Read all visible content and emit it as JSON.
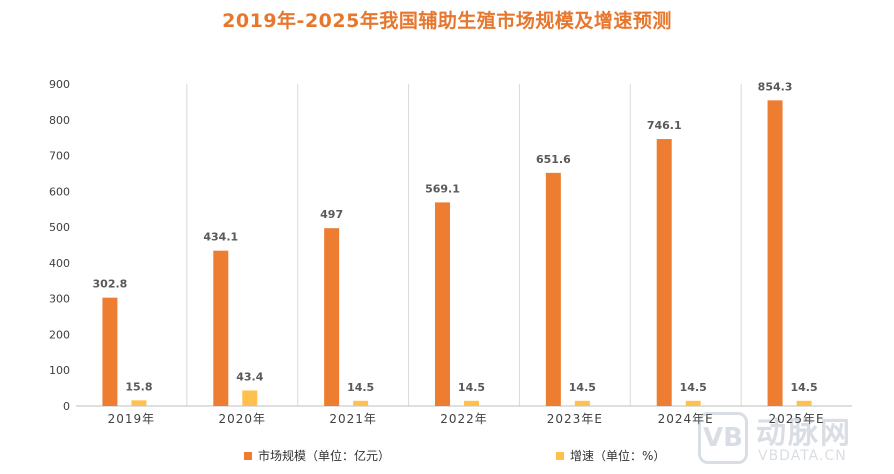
{
  "chart_data": {
    "type": "bar",
    "title": "2019年-2025年我国辅助生殖市场规模及增速预测",
    "categories": [
      "2019年",
      "2020年",
      "2021年",
      "2022年",
      "2023年E",
      "2024年E",
      "2025年E"
    ],
    "series": [
      {
        "name": "市场规模（单位：亿元）",
        "color": "#ed7d31",
        "values": [
          302.8,
          434.1,
          497,
          569.1,
          651.6,
          746.1,
          854.3
        ],
        "labels": [
          "302.8",
          "434.1",
          "497",
          "569.1",
          "651.6",
          "746.1",
          "854.3"
        ]
      },
      {
        "name": "增速（单位：%）",
        "color": "#ffc04d",
        "values": [
          15.8,
          43.4,
          14.5,
          14.5,
          14.5,
          14.5,
          14.5
        ],
        "labels": [
          "15.8",
          "43.4",
          "14.5",
          "14.5",
          "14.5",
          "14.5",
          "14.5"
        ]
      }
    ],
    "yticks": [
      0,
      100,
      200,
      300,
      400,
      500,
      600,
      700,
      800,
      900
    ],
    "ylim": [
      0,
      900
    ],
    "xlabel": "",
    "ylabel": "",
    "legend_position": "bottom",
    "grid": "vertical-separators"
  },
  "watermark": {
    "logo_letters": "VB",
    "name": "动脉网",
    "site": "VBDATA.CN"
  }
}
